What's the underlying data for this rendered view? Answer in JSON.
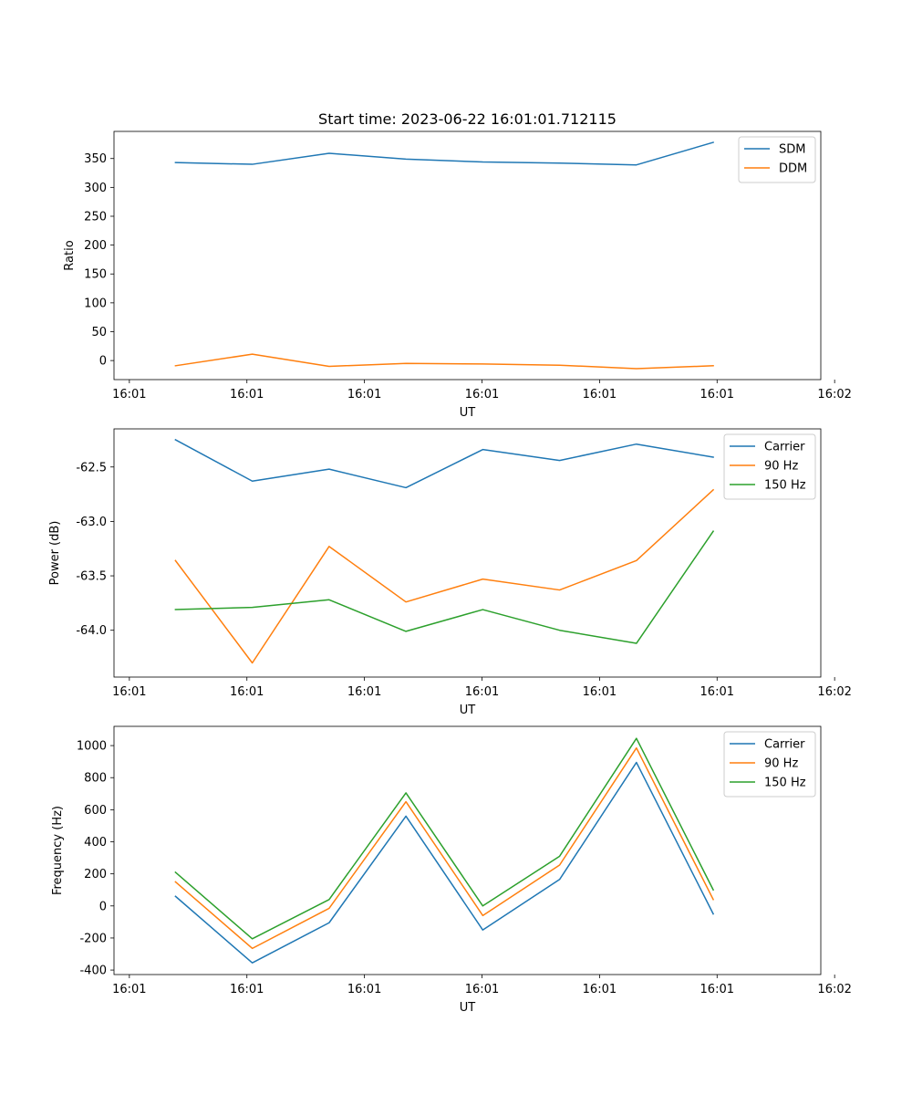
{
  "figure": {
    "title": "Start time: 2023-06-22 16:01:01.712115",
    "colors": {
      "blue": "#1f77b4",
      "orange": "#ff7f0e",
      "green": "#2ca02c"
    }
  },
  "chart_data": [
    {
      "type": "line",
      "title": "Start time: 2023-06-22 16:01:01.712115",
      "xlabel": "UT",
      "ylabel": "Ratio",
      "x": [
        1,
        2,
        3,
        4,
        5,
        6,
        7,
        8
      ],
      "xlim": [
        0.2,
        9.4
      ],
      "x_ticks": [
        0.4,
        1.93,
        3.46,
        4.99,
        6.52,
        8.05,
        9.58
      ],
      "x_tick_labels": [
        "16:01",
        "16:01",
        "16:01",
        "16:01",
        "16:01",
        "16:01",
        "16:02"
      ],
      "ylim": [
        -33,
        397
      ],
      "y_ticks": [
        0,
        50,
        100,
        150,
        200,
        250,
        300,
        350
      ],
      "legend_position": "top-right",
      "grid": false,
      "series": [
        {
          "name": "SDM",
          "color": "#1f77b4",
          "values": [
            343,
            340,
            359,
            349,
            344,
            342,
            339,
            378
          ]
        },
        {
          "name": "DDM",
          "color": "#ff7f0e",
          "values": [
            -9,
            11,
            -10,
            -5,
            -6,
            -8,
            -14,
            -9
          ]
        }
      ]
    },
    {
      "type": "line",
      "title": "",
      "xlabel": "UT",
      "ylabel": "Power (dB)",
      "x": [
        1,
        2,
        3,
        4,
        5,
        6,
        7,
        8
      ],
      "xlim": [
        0.2,
        9.4
      ],
      "x_ticks": [
        0.4,
        1.93,
        3.46,
        4.99,
        6.52,
        8.05,
        9.58
      ],
      "x_tick_labels": [
        "16:01",
        "16:01",
        "16:01",
        "16:01",
        "16:01",
        "16:01",
        "16:02"
      ],
      "ylim": [
        -64.43,
        -62.15
      ],
      "y_ticks": [
        -64.0,
        -63.5,
        -63.0,
        -62.5
      ],
      "y_tick_labels": [
        "-64.0",
        "-63.5",
        "-63.0",
        "-62.5"
      ],
      "legend_position": "top-right",
      "grid": false,
      "series": [
        {
          "name": "Carrier",
          "color": "#1f77b4",
          "values": [
            -62.25,
            -62.63,
            -62.52,
            -62.69,
            -62.34,
            -62.44,
            -62.29,
            -62.41
          ]
        },
        {
          "name": "90 Hz",
          "color": "#ff7f0e",
          "values": [
            -63.36,
            -64.3,
            -63.23,
            -63.74,
            -63.53,
            -63.63,
            -63.36,
            -62.71
          ]
        },
        {
          "name": "150 Hz",
          "color": "#2ca02c",
          "values": [
            -63.81,
            -63.79,
            -63.72,
            -64.01,
            -63.81,
            -64.0,
            -64.12,
            -63.09
          ]
        }
      ]
    },
    {
      "type": "line",
      "title": "",
      "xlabel": "UT",
      "ylabel": "Frequency (Hz)",
      "x": [
        1,
        2,
        3,
        4,
        5,
        6,
        7,
        8
      ],
      "xlim": [
        0.2,
        9.4
      ],
      "x_ticks": [
        0.4,
        1.93,
        3.46,
        4.99,
        6.52,
        8.05,
        9.58
      ],
      "x_tick_labels": [
        "16:01",
        "16:01",
        "16:01",
        "16:01",
        "16:01",
        "16:01",
        "16:02"
      ],
      "ylim": [
        -428,
        1120
      ],
      "y_ticks": [
        -400,
        -200,
        0,
        200,
        400,
        600,
        800,
        1000
      ],
      "legend_position": "top-right",
      "grid": false,
      "series": [
        {
          "name": "Carrier",
          "color": "#1f77b4",
          "values": [
            60,
            -355,
            -105,
            560,
            -150,
            165,
            895,
            -50
          ]
        },
        {
          "name": "90 Hz",
          "color": "#ff7f0e",
          "values": [
            150,
            -265,
            -15,
            650,
            -60,
            255,
            985,
            40
          ]
        },
        {
          "name": "150 Hz",
          "color": "#2ca02c",
          "values": [
            210,
            -205,
            40,
            705,
            0,
            310,
            1045,
            100
          ]
        }
      ]
    }
  ]
}
